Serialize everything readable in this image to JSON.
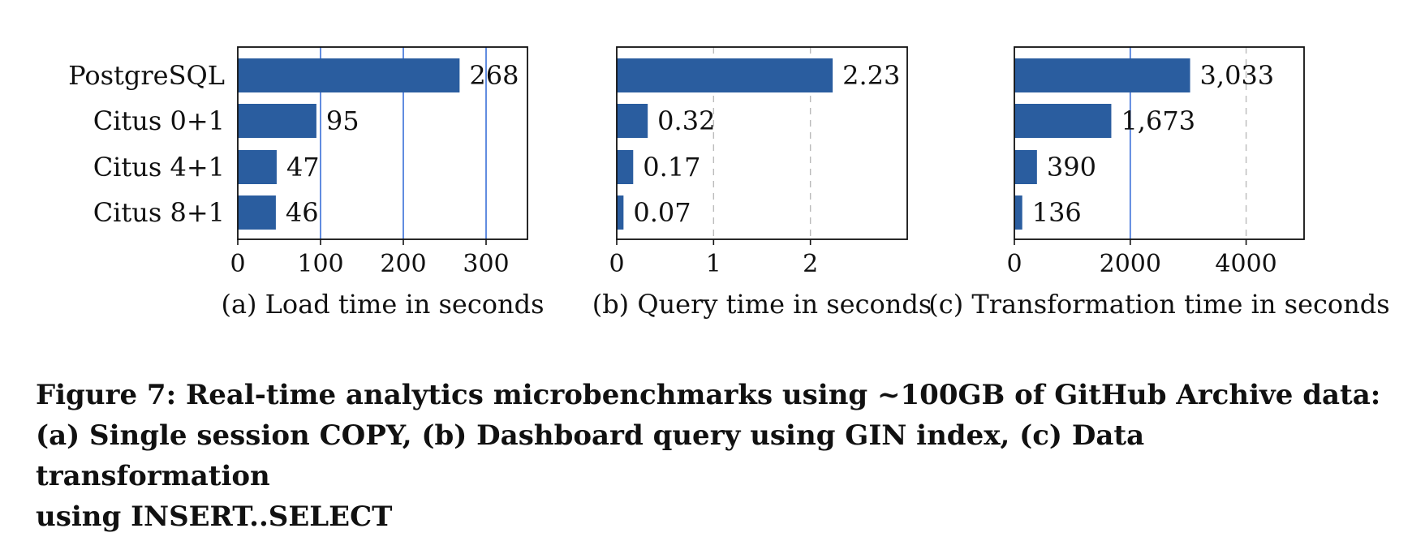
{
  "chart_data": [
    {
      "type": "bar",
      "orientation": "horizontal",
      "categories": [
        "PostgreSQL",
        "Citus 0+1",
        "Citus 4+1",
        "Citus 8+1"
      ],
      "values": [
        268,
        95,
        47,
        46
      ],
      "value_labels": [
        "268",
        "95",
        "47",
        "46"
      ],
      "xlim": [
        0,
        350
      ],
      "xticks": [
        0,
        100,
        200,
        300
      ],
      "xtick_labels": [
        "0",
        "100",
        "200",
        "300"
      ],
      "grid": "vertical-solid",
      "xlabel": "(a) Load time in seconds",
      "bar_color": "#2a5d9f",
      "grid_color": "#3a6fd8"
    },
    {
      "type": "bar",
      "orientation": "horizontal",
      "categories": [
        "PostgreSQL",
        "Citus 0+1",
        "Citus 4+1",
        "Citus 8+1"
      ],
      "values": [
        2.23,
        0.32,
        0.17,
        0.07
      ],
      "value_labels": [
        "2.23",
        "0.32",
        "0.17",
        "0.07"
      ],
      "xlim": [
        0,
        3
      ],
      "xticks": [
        0,
        1,
        2
      ],
      "xtick_labels": [
        "0",
        "1",
        "2"
      ],
      "grid": "vertical-dashed",
      "xlabel": "(b) Query time in seconds",
      "bar_color": "#2a5d9f",
      "grid_color": "#bbbbbb"
    },
    {
      "type": "bar",
      "orientation": "horizontal",
      "categories": [
        "PostgreSQL",
        "Citus 0+1",
        "Citus 4+1",
        "Citus 8+1"
      ],
      "values": [
        3033,
        1673,
        390,
        136
      ],
      "value_labels": [
        "3,033",
        "1,673",
        "390",
        "136"
      ],
      "xlim": [
        0,
        5000
      ],
      "xticks": [
        0,
        2000,
        4000
      ],
      "xtick_labels": [
        "0",
        "2000",
        "4000"
      ],
      "grid": "mixed",
      "xlabel": "(c) Transformation time in seconds",
      "bar_color": "#2a5d9f",
      "grid_color": "#3a6fd8"
    }
  ],
  "caption": {
    "line1": "Figure 7: Real-time analytics microbenchmarks using ~100GB of GitHub Archive data:",
    "line2": "(a) Single session COPY, (b) Dashboard query using GIN index, (c) Data transformation",
    "line3": "using INSERT..SELECT"
  }
}
